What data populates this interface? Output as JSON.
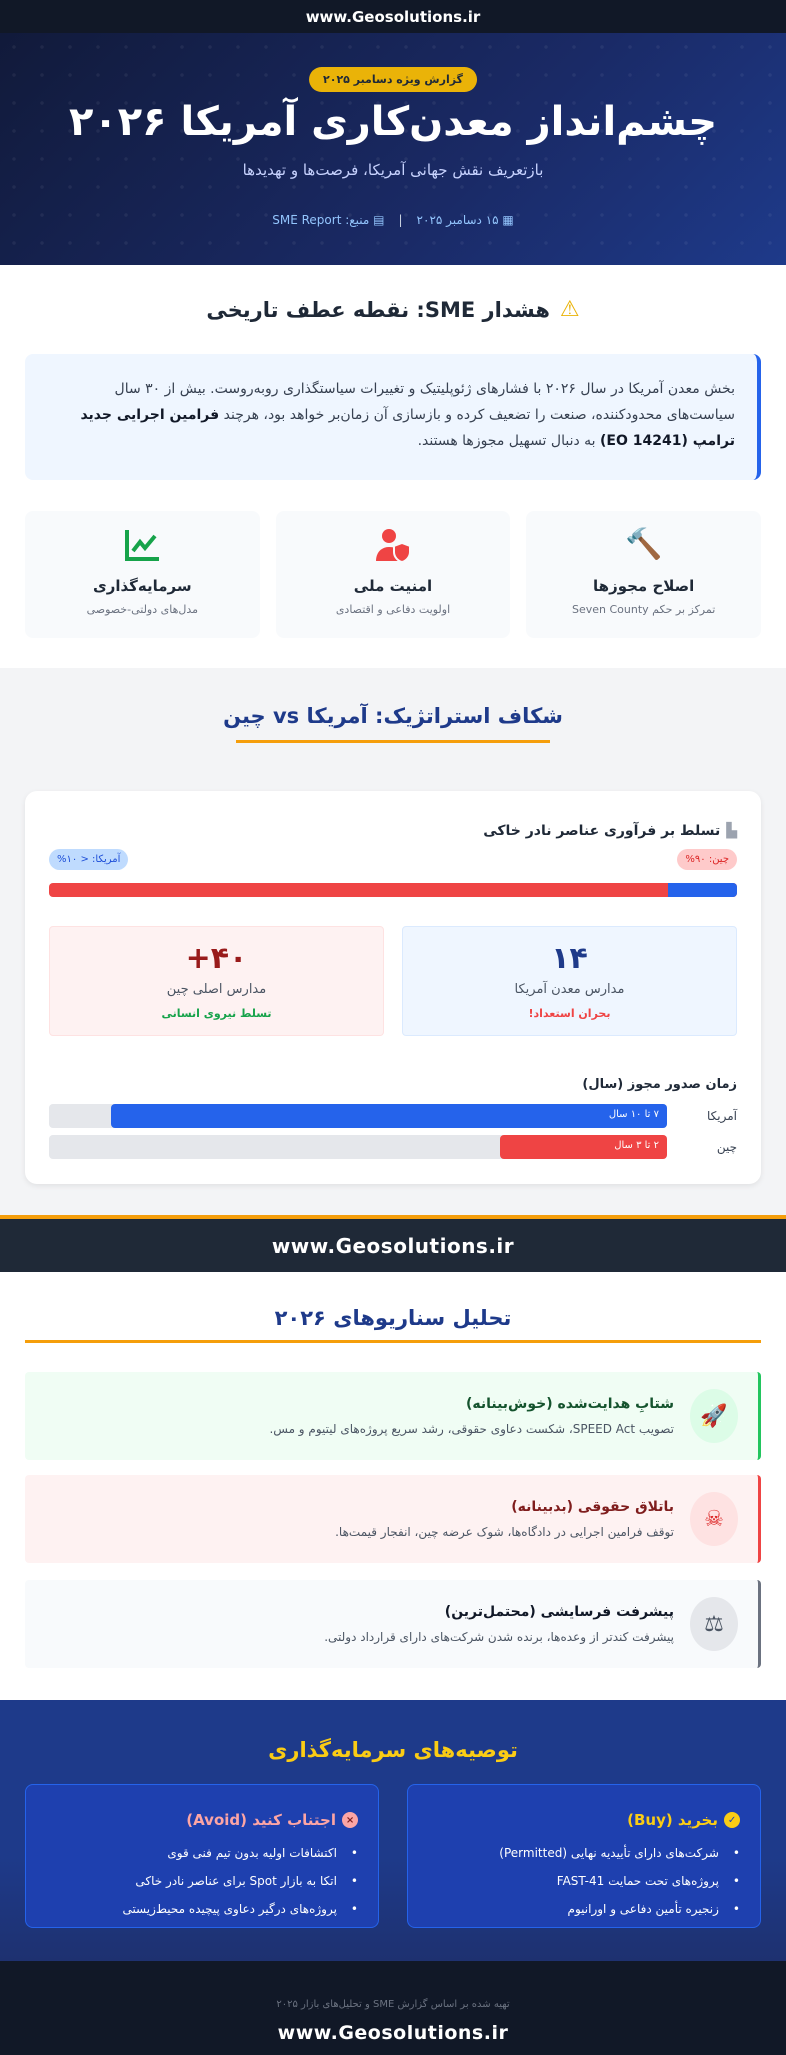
{
  "site": "www.Geosolutions.ir",
  "hero": {
    "badge": "گزارش ویژه دسامبر ۲۰۲۵",
    "title": "چشم‌انداز معدن‌کاری آمریکا ۲۰۲۶",
    "subtitle": "بازتعریف نقش جهانی آمریکا، فرصت‌ها و تهدیدها",
    "date": "۱۵ دسامبر ۲۰۲۵",
    "separator": "|",
    "source": "منبع: SME Report"
  },
  "alert": {
    "title": "هشدار SME: نقطه عطف تاریخی",
    "text_1": "بخش معدن آمریکا در سال ۲۰۲۶ با فشارهای ژئوپلیتیک و تغییرات سیاستگذاری روبه‌روست. بیش از ۳۰ سال سیاست‌های محدودکننده، صنعت را تضعیف کرده و بازسازی آن زمان‌بر خواهد بود، هرچند ",
    "bold": "فرامین اجرایی جدید ترامپ (EO 14241)",
    "text_2": " به دنبال تسهیل مجوزها هستند."
  },
  "features": [
    {
      "icon": "gavel-icon",
      "title": "اصلاح مجوزها",
      "desc": "تمرکز بر حکم Seven County",
      "color": "#2563eb"
    },
    {
      "icon": "user-shield-icon",
      "title": "امنیت ملی",
      "desc": "اولویت دفاعی و اقتصادی",
      "color": "#ef4444"
    },
    {
      "icon": "chart-line-icon",
      "title": "سرمایه‌گذاری",
      "desc": "مدل‌های دولتی-خصوصی",
      "color": "#16a34a"
    }
  ],
  "gap": {
    "title": "شکاف استراتژیک: آمریکا vs چین",
    "card_title": "تسلط بر فرآوری عناصر نادر خاکی",
    "china_pill": "چین: ۹۰%",
    "us_pill": "آمریکا: < ۱۰%",
    "china_share": 90,
    "us_share": 10,
    "us_stat": {
      "value": "۱۴",
      "label": "مدارس معدن آمریکا",
      "note": "بحران استعداد!"
    },
    "china_stat": {
      "value": "۴۰+",
      "label": "مدارس اصلی چین",
      "note": "تسلط نیروی انسانی"
    },
    "license_title": "زمان صدور مجوز (سال)",
    "license": [
      {
        "label": "آمریکا",
        "value": "۷ تا ۱۰ سال",
        "fill": 0.9
      },
      {
        "label": "چین",
        "value": "۲ تا ۳ سال",
        "fill": 0.27
      }
    ]
  },
  "scenarios": {
    "title": "تحلیل سناریوهای ۲۰۲۶",
    "items": [
      {
        "title": "شتابِ هدایت‌شده (خوش‌بینانه)",
        "desc": "تصویب SPEED Act، شکست دعاوی حقوقی، رشد سریع پروژه‌های لیتیوم و مس.",
        "icon": "rocket-icon"
      },
      {
        "title": "باتلاق حقوقی (بدبینانه)",
        "desc": "توقف فرامین اجرایی در دادگاه‌ها، شوک عرضه چین، انفجار قیمت‌ها.",
        "icon": "skull-crossbones-icon"
      },
      {
        "title": "پیشرفت فرسایشی (محتمل‌ترین)",
        "desc": "پیشرفت کندتر از وعده‌ها، برنده شدن شرکت‌های دارای قرارداد دولتی.",
        "icon": "balance-scale-icon"
      }
    ]
  },
  "recs": {
    "title": "توصیه‌های سرمایه‌گذاری",
    "buy": {
      "title": "بخرید (Buy)",
      "items": [
        "شرکت‌های دارای تأییدیه نهایی (Permitted)",
        "پروژه‌های تحت حمایت FAST-41",
        "زنجیره تأمین دفاعی و اورانیوم"
      ]
    },
    "avoid": {
      "title": "اجتناب کنید (Avoid)",
      "items": [
        "اکتشافات اولیه بدون تیم فنی قوی",
        "اتکا به بازار Spot برای عناصر نادر خاکی",
        "پروژه‌های درگیر دعاوی پیچیده محیط‌زیستی"
      ]
    }
  },
  "footer": {
    "note": "تهیه شده بر اساس گزارش SME و تحلیل‌های بازار ۲۰۲۵"
  }
}
